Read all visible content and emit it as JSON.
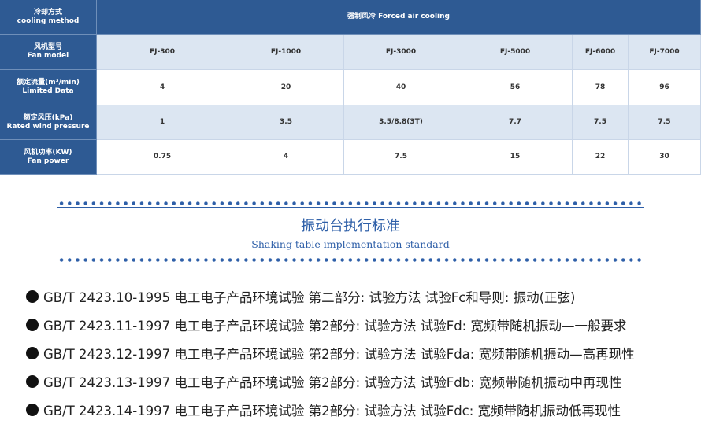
{
  "table": {
    "rows": [
      {
        "label_cn": "冷却方式",
        "label_en": "cooling method",
        "cells": [
          "强制风冷  Forced air cooling"
        ]
      },
      {
        "label_cn": "风机型号",
        "label_en": "Fan model",
        "cells": [
          "FJ-300",
          "FJ-1000",
          "FJ-3000",
          "FJ-5000",
          "FJ-6000",
          "FJ-7000"
        ]
      },
      {
        "label_cn": "额定流量(m³/min)",
        "label_en": "Limited Data",
        "cells": [
          "4",
          "20",
          "40",
          "56",
          "78",
          "96"
        ]
      },
      {
        "label_cn": "额定风压(kPa)",
        "label_en": "Rated wind pressure",
        "cells": [
          "1",
          "3.5",
          "3.5/8.8(3T)",
          "7.7",
          "7.5",
          "7.5"
        ]
      },
      {
        "label_cn": "风机功率(KW)",
        "label_en": "Fan power",
        "cells": [
          "0.75",
          "4",
          "7.5",
          "15",
          "22",
          "30"
        ]
      }
    ]
  },
  "section": {
    "title": "振动台执行标准",
    "subtitle": "Shaking table implementation standard"
  },
  "standards": [
    "GB/T 2423.10-1995 电工电子产品环境试验 第二部分: 试验方法 试验Fc和导则: 振动(正弦)",
    "GB/T 2423.11-1997 电工电子产品环境试验 第2部分: 试验方法 试验Fd: 宽频带随机振动—一般要求",
    "GB/T 2423.12-1997 电工电子产品环境试验 第2部分: 试验方法 试验Fda: 宽频带随机振动—高再现性",
    "GB/T 2423.13-1997 电工电子产品环境试验 第2部分: 试验方法 试验Fdb: 宽频带随机振动中再现性",
    "GB/T 2423.14-1997 电工电子产品环境试验 第2部分: 试验方法 试验Fdc: 宽频带随机振动低再现性"
  ]
}
